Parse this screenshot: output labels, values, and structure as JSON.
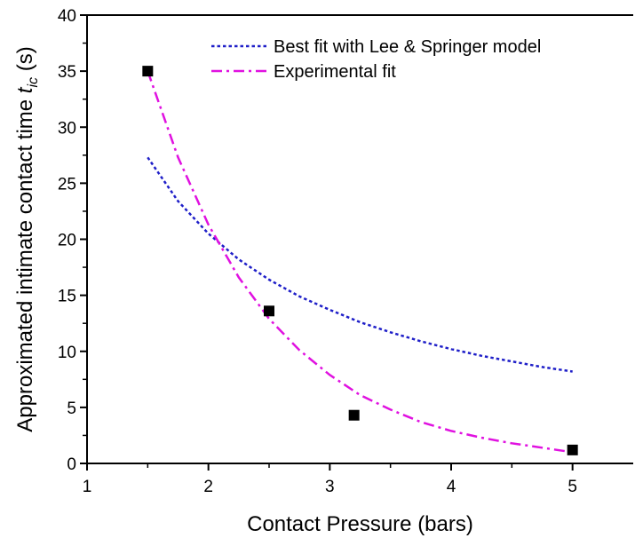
{
  "chart_data": {
    "type": "scatter",
    "xlabel": "Contact Pressure (bars)",
    "ylabel": {
      "main": "Approximated intimate contact time ",
      "symbol": "t",
      "subscript": "ic",
      "unit": " (s)"
    },
    "xlim": [
      1,
      5.5
    ],
    "ylim": [
      0,
      40
    ],
    "xticks": [
      1,
      2,
      3,
      4,
      5
    ],
    "yticks": [
      0,
      5,
      10,
      15,
      20,
      25,
      30,
      35,
      40
    ],
    "grid": false,
    "legend_position": "top-right",
    "points": {
      "x": [
        1.5,
        2.5,
        3.2,
        5.0
      ],
      "y": [
        35.0,
        13.6,
        4.3,
        1.2
      ],
      "marker": "square",
      "color": "#000000"
    },
    "series": [
      {
        "name": "Best fit with Lee & Springer model",
        "style": "dotted",
        "color": "#1f1fc8",
        "x": [
          1.5,
          1.75,
          2.0,
          2.25,
          2.5,
          2.75,
          3.0,
          3.25,
          3.5,
          3.75,
          4.0,
          4.25,
          4.5,
          4.75,
          5.0
        ],
        "y": [
          27.3,
          23.4,
          20.5,
          18.2,
          16.4,
          14.9,
          13.7,
          12.6,
          11.7,
          10.9,
          10.2,
          9.6,
          9.1,
          8.6,
          8.2
        ]
      },
      {
        "name": "Experimental fit",
        "style": "dash-dot",
        "color": "#e011e0",
        "x": [
          1.5,
          1.75,
          2.0,
          2.25,
          2.5,
          2.75,
          3.0,
          3.25,
          3.5,
          3.75,
          4.0,
          4.25,
          4.5,
          4.75,
          5.0
        ],
        "y": [
          35.0,
          27.3,
          21.3,
          16.6,
          12.9,
          10.1,
          7.9,
          6.1,
          4.8,
          3.7,
          2.9,
          2.3,
          1.8,
          1.4,
          1.0
        ]
      }
    ]
  }
}
